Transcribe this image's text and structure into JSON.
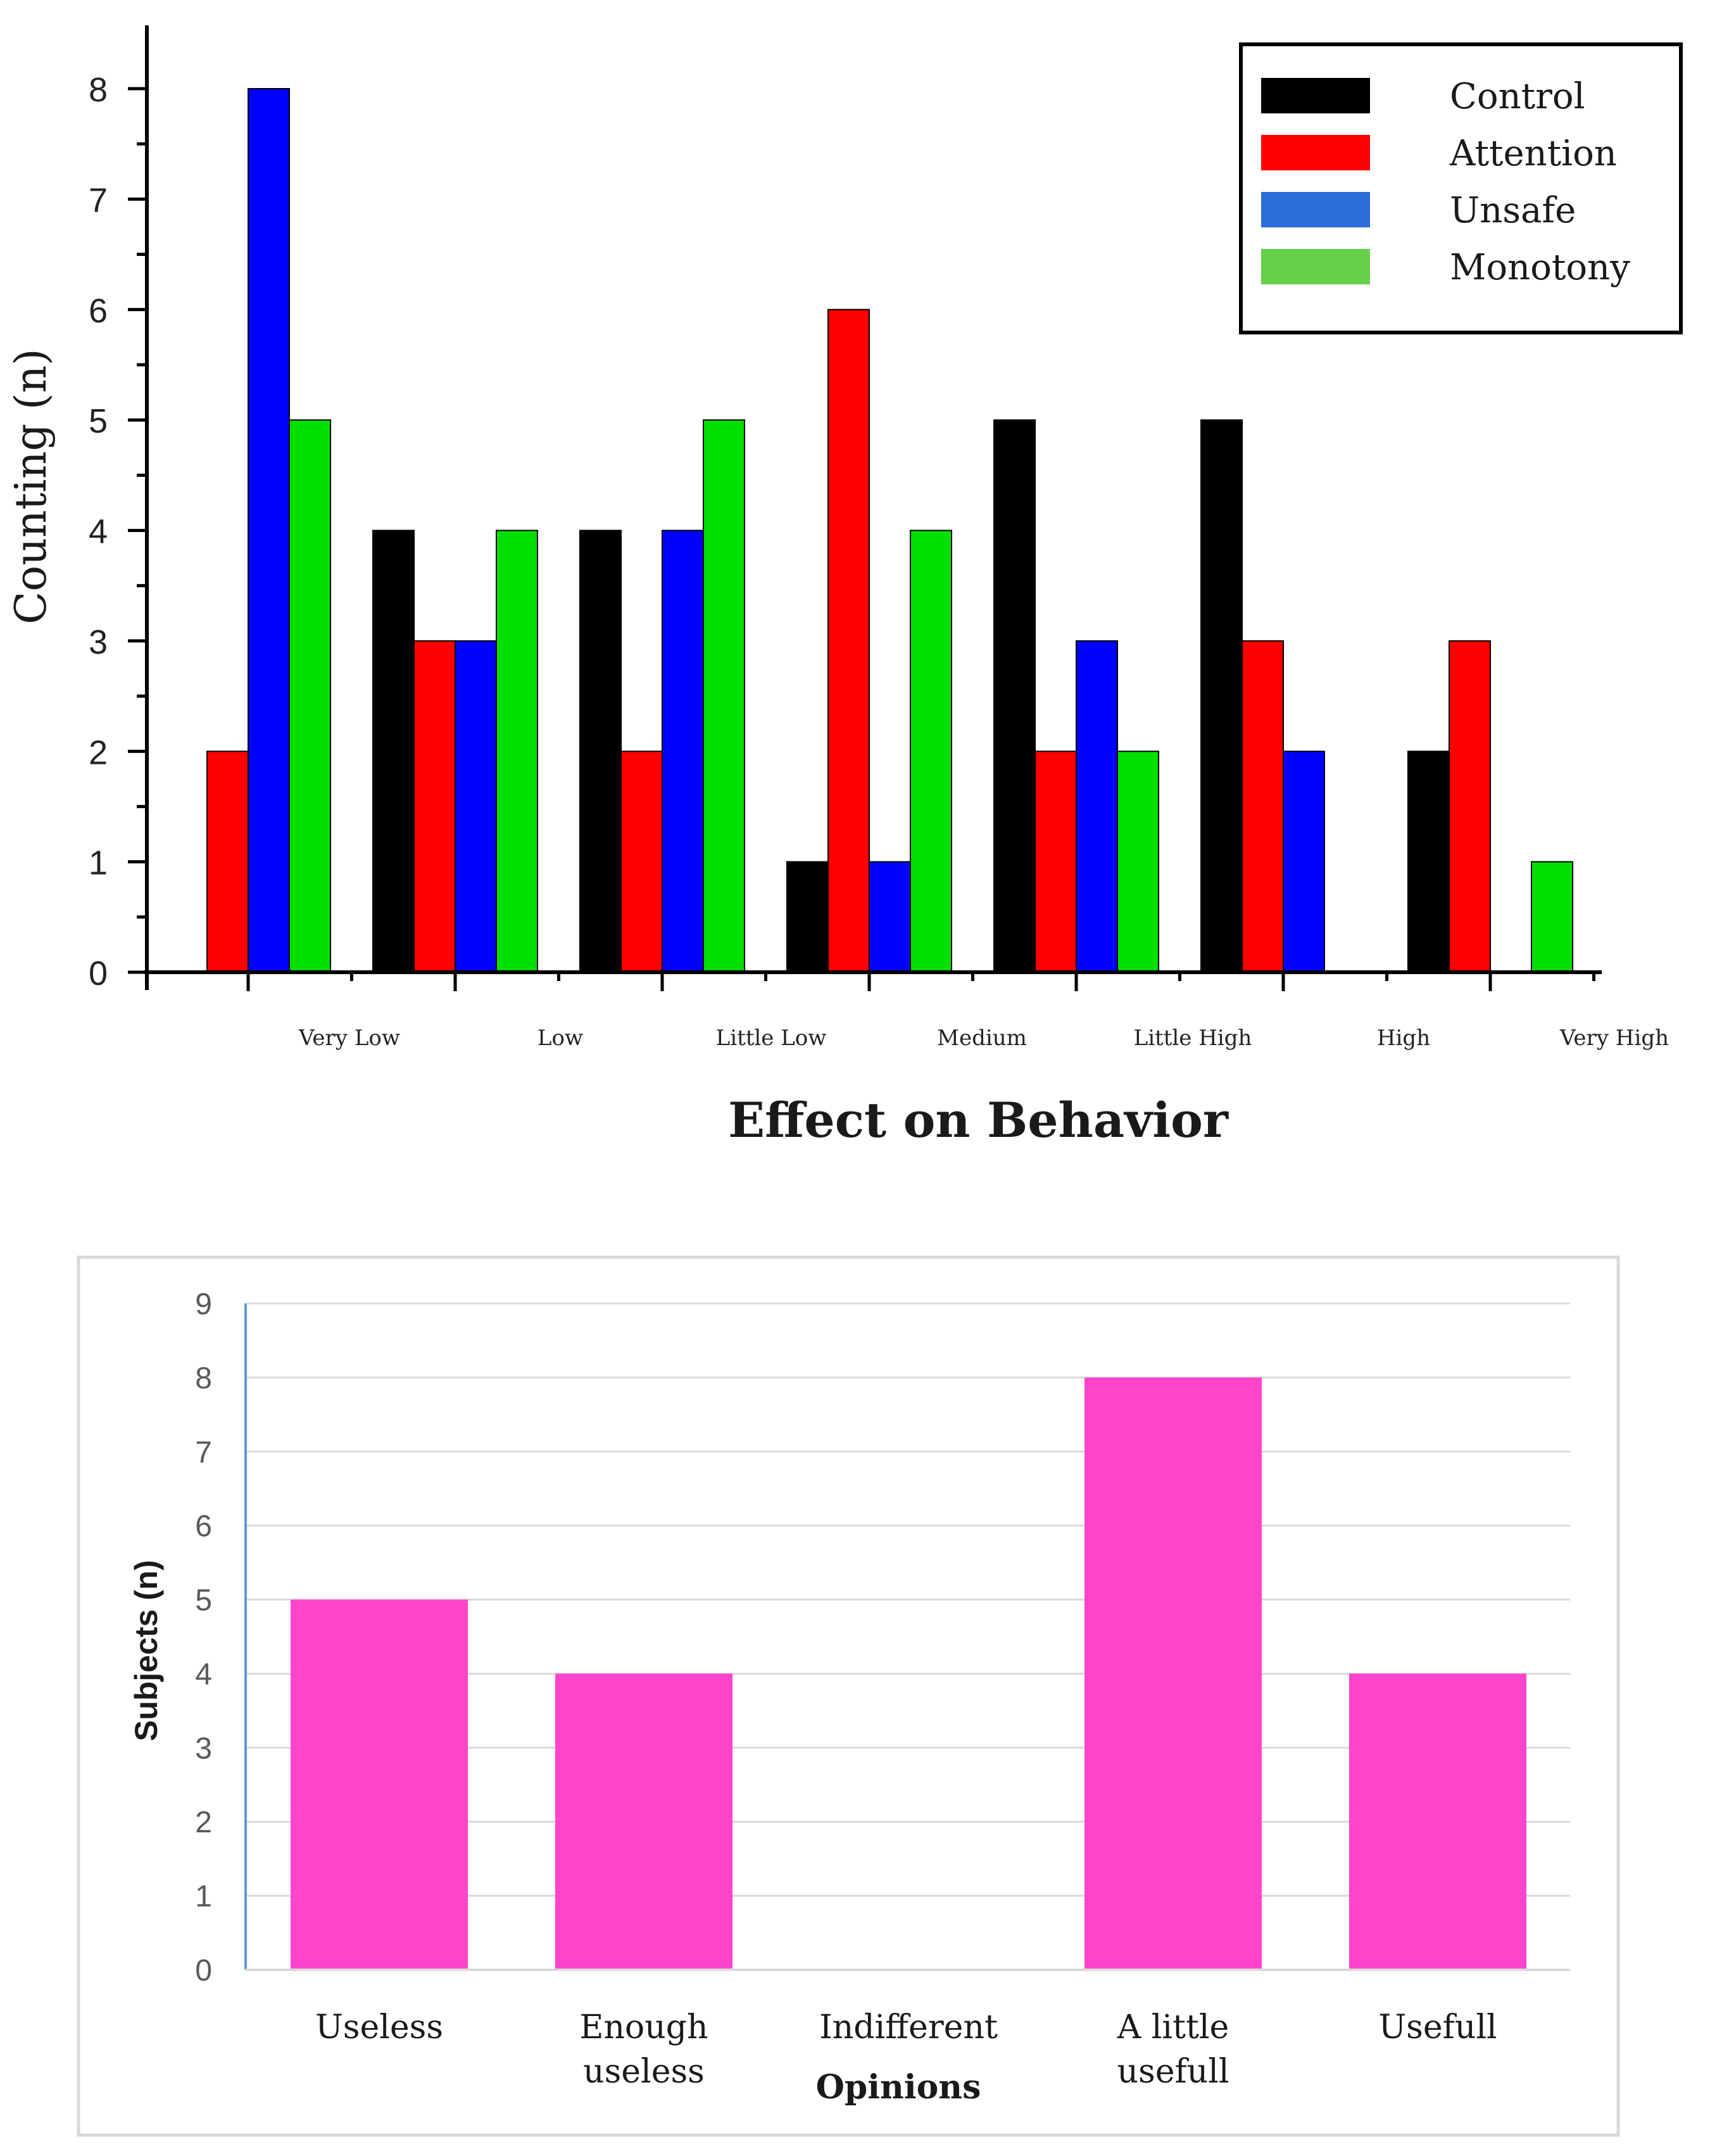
{
  "chart_data": [
    {
      "type": "bar",
      "xlabel": "Effect on Behavior",
      "ylabel": "Counting (n)",
      "ylim": [
        0,
        8.5
      ],
      "yticks": [
        0,
        1,
        2,
        3,
        4,
        5,
        6,
        7,
        8
      ],
      "categories": [
        "Very Low",
        "Low",
        "Little Low",
        "Medium",
        "Little High",
        "High",
        "Very High"
      ],
      "legend_position": "top-right",
      "series": [
        {
          "name": "Control",
          "color": "#000000",
          "values": [
            0,
            4,
            4,
            1,
            5,
            5,
            2
          ]
        },
        {
          "name": "Attention",
          "color": "#ff0000",
          "values": [
            2,
            3,
            2,
            6,
            2,
            3,
            3
          ]
        },
        {
          "name": "Unsafe",
          "color": "#0000ff",
          "values": [
            8,
            3,
            4,
            1,
            3,
            2,
            0
          ]
        },
        {
          "name": "Monotony",
          "color": "#00e000",
          "values": [
            5,
            4,
            5,
            4,
            2,
            0,
            1
          ]
        }
      ],
      "legend_swatch_colors": [
        "#000000",
        "#ff0000",
        "#2a6fd8",
        "#66d04a"
      ]
    },
    {
      "type": "bar",
      "xlabel": "Opinions",
      "ylabel": "Subjects (n)",
      "ylim": [
        0,
        9
      ],
      "yticks": [
        0,
        1,
        2,
        3,
        4,
        5,
        6,
        7,
        8,
        9
      ],
      "categories": [
        [
          "Useless"
        ],
        [
          "Enough",
          "useless"
        ],
        [
          "Indifferent"
        ],
        [
          "A little",
          "usefull"
        ],
        [
          "Usefull"
        ]
      ],
      "values": [
        5,
        4,
        0,
        8,
        4
      ],
      "bar_color": "#ff44cc",
      "gridline_color": "#d9d9d9",
      "axis_color": "#5b9bd5"
    }
  ]
}
